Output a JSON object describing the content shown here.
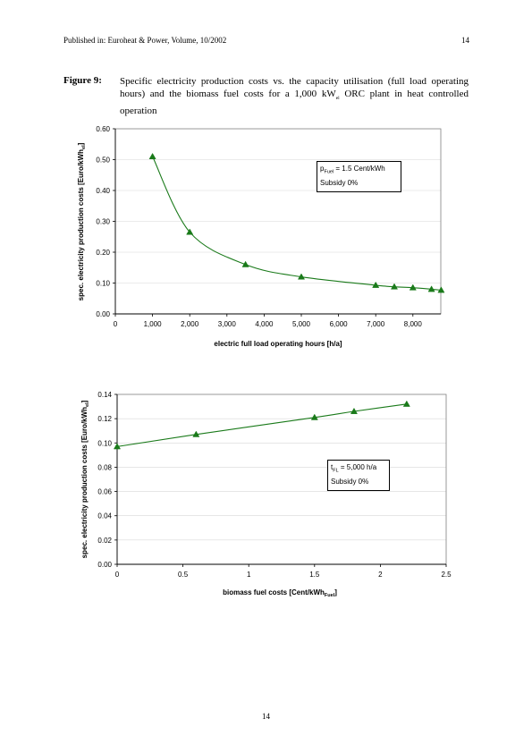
{
  "header": {
    "left": "Published in: Euroheat & Power, Volume, 10/2002",
    "right": "14"
  },
  "figure": {
    "label": "Figure 9:",
    "caption_part1": "Specific electricity production costs vs. the capacity utilisation (full load operating hours) and the biomass fuel costs for a 1,000 kW",
    "caption_sub": "el",
    "caption_part2": " ORC plant in heat controlled operation"
  },
  "page_number": "14",
  "colors": {
    "series": "#1a7a1a",
    "grid": "#d8d8d8",
    "axis": "#000000"
  },
  "chart_data": [
    {
      "type": "line",
      "xlabel": "electric full load operating hours [h/a]",
      "ylabel_main": "spec. electricity production costs [Euro/kWh",
      "ylabel_sub": "el",
      "ylabel_end": "]",
      "xlim": [
        0,
        8750
      ],
      "ylim": [
        0,
        0.6
      ],
      "x_ticks": [
        0,
        1000,
        2000,
        3000,
        4000,
        5000,
        6000,
        7000,
        8000
      ],
      "x_tick_labels": [
        "0",
        "1,000",
        "2,000",
        "3,000",
        "4,000",
        "5,000",
        "6,000",
        "7,000",
        "8,000"
      ],
      "y_ticks": [
        0,
        0.1,
        0.2,
        0.3,
        0.4,
        0.5,
        0.6
      ],
      "y_tick_labels": [
        "0.00",
        "0.10",
        "0.20",
        "0.30",
        "0.40",
        "0.50",
        "0.60"
      ],
      "grid": "horizontal",
      "marker": "triangle",
      "x": [
        1000,
        2000,
        3500,
        5000,
        7000,
        7500,
        8000,
        8500,
        8760
      ],
      "y": [
        0.51,
        0.265,
        0.16,
        0.12,
        0.093,
        0.088,
        0.085,
        0.08,
        0.077
      ],
      "annotation": {
        "line1_pre": "p",
        "line1_sub": "Fuel",
        "line1_post": " = 1.5 Cent/kWh",
        "line2": "Subsidy 0%"
      }
    },
    {
      "type": "line",
      "xlabel_main": "biomass fuel costs [Cent/kWh",
      "xlabel_sub": "Fuel",
      "xlabel_end": "]",
      "ylabel_main": "spec. electricity production costs [Euro/kWh",
      "ylabel_sub": "el",
      "ylabel_end": "]",
      "xlim": [
        0,
        2.5
      ],
      "ylim": [
        0,
        0.14
      ],
      "x_ticks": [
        0,
        0.5,
        1,
        1.5,
        2,
        2.5
      ],
      "x_tick_labels": [
        "0",
        "0.5",
        "1",
        "1.5",
        "2",
        "2.5"
      ],
      "y_ticks": [
        0,
        0.02,
        0.04,
        0.06,
        0.08,
        0.1,
        0.12,
        0.14
      ],
      "y_tick_labels": [
        "0.00",
        "0.02",
        "0.04",
        "0.06",
        "0.08",
        "0.10",
        "0.12",
        "0.14"
      ],
      "grid": "horizontal",
      "marker": "triangle",
      "x": [
        0,
        0.6,
        1.5,
        1.8,
        2.2
      ],
      "y": [
        0.097,
        0.107,
        0.121,
        0.126,
        0.132
      ],
      "annotation": {
        "line1_pre": "t",
        "line1_sub": "FL",
        "line1_post": " = 5,000 h/a",
        "line2": "Subsidy 0%"
      }
    }
  ]
}
